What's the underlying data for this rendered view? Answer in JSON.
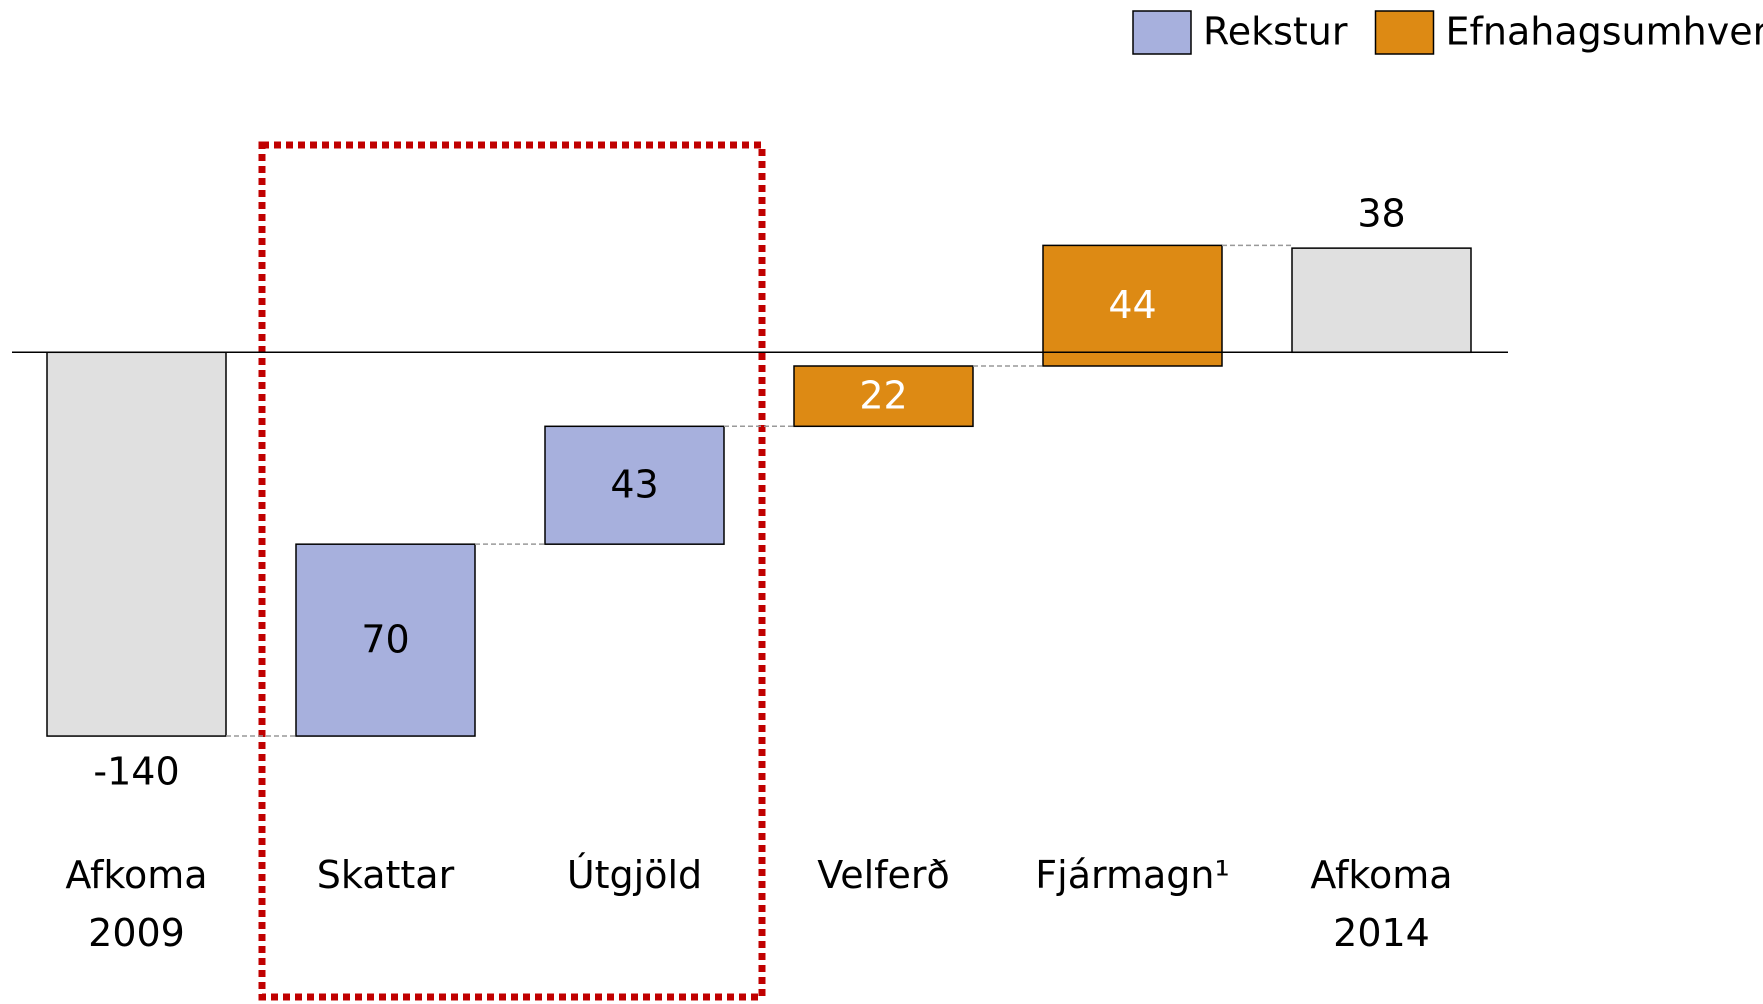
{
  "chart_data": {
    "type": "waterfall",
    "categories": [
      "Afkoma 2009",
      "Skattar",
      "Útgjöld",
      "Velferð",
      "Fjármagn¹",
      "Afkoma 2014"
    ],
    "values": [
      -140,
      70,
      43,
      22,
      44,
      38
    ],
    "totals": [
      true,
      false,
      false,
      false,
      false,
      true
    ],
    "bar_series": [
      null,
      0,
      0,
      1,
      1,
      null
    ],
    "total_color": "#e0e0e0",
    "series": [
      {
        "name": "Rekstur",
        "color": "#a7b0dd",
        "label_color": "#000000"
      },
      {
        "name": "Efnahagsumhverfi",
        "color": "#dd8a14",
        "label_color": "#ffffff"
      }
    ],
    "ylim": [
      -175,
      80
    ]
  }
}
